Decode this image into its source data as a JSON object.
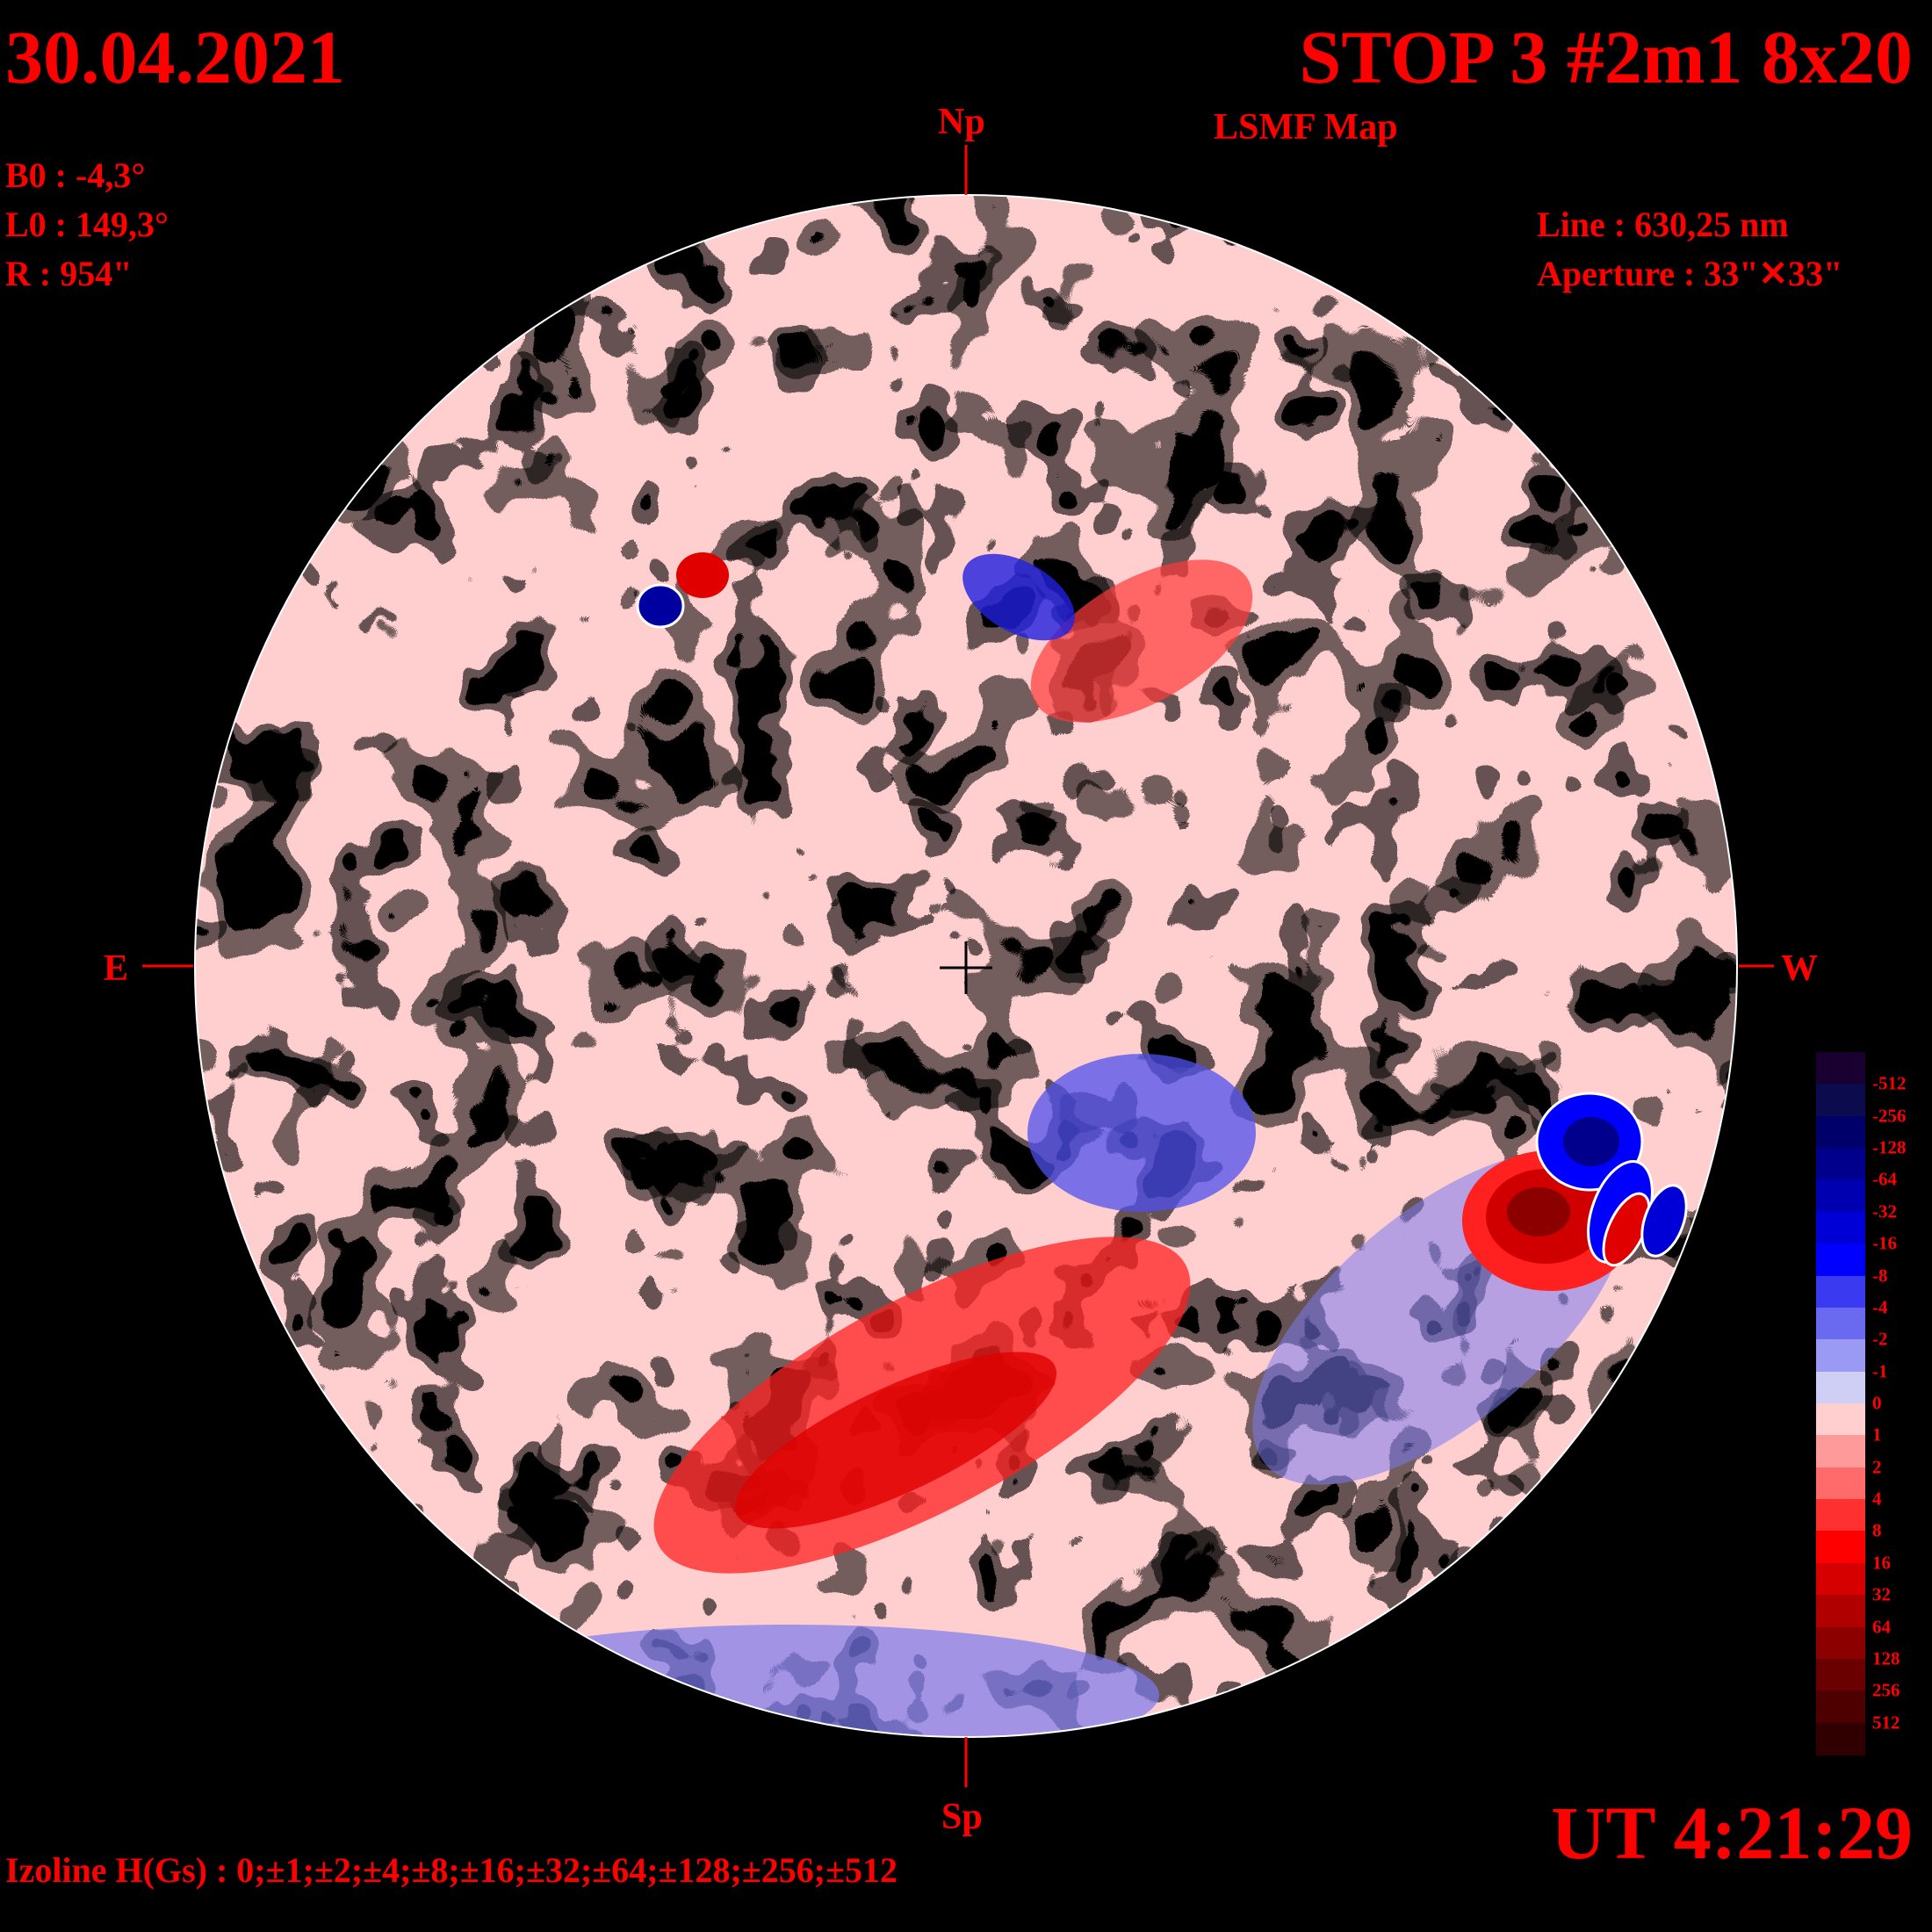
{
  "header": {
    "date": "30.04.2021",
    "title": "STOP 3 #2m1 8x20",
    "subtitle": "LSMF  Map"
  },
  "params": {
    "b0": "B0 : -4,3°",
    "l0": "L0 : 149,3°",
    "r": "R  : 954\""
  },
  "instrument": {
    "line": "Line :  630,25 nm",
    "aperture": "Aperture : 33\"✕33\""
  },
  "directions": {
    "north": "Np",
    "south": "Sp",
    "east": "E",
    "west": "W"
  },
  "footer": {
    "ut": "UT 4:21:29",
    "izoline": "Izoline H(Gs) : 0;±1;±2;±4;±8;±16;±32;±64;±128;±256;±512"
  },
  "colors": {
    "background": "#000000",
    "text": "#ff0000",
    "contour": "#ffffff",
    "scale": [
      "#1a0030",
      "#0b0b4e",
      "#00006a",
      "#00008c",
      "#0000b0",
      "#0000d6",
      "#0000ff",
      "#3a3af0",
      "#6a6af0",
      "#9a9af5",
      "#cfcff5",
      "#ffcece",
      "#ff9a9a",
      "#ff6a6a",
      "#ff3030",
      "#ff0000",
      "#d60000",
      "#b00000",
      "#8c0000",
      "#6a0000",
      "#4e0000",
      "#300000"
    ]
  },
  "legend": {
    "labels": [
      "-512",
      "-256",
      "-128",
      "-64",
      "-32",
      "-16",
      "-8",
      "-4",
      "-2",
      "-1",
      "0",
      "1",
      "2",
      "4",
      "8",
      "16",
      "32",
      "64",
      "128",
      "256",
      "512"
    ]
  },
  "features": [
    {
      "name": "active-region-west-negative",
      "polarity": "negative",
      "strength": "strong"
    },
    {
      "name": "active-region-west-positive",
      "polarity": "positive",
      "strength": "strong"
    },
    {
      "name": "pore-northeast",
      "polarity": "negative",
      "strength": "strong"
    },
    {
      "name": "positive-band-south",
      "polarity": "positive",
      "strength": "moderate"
    }
  ]
}
